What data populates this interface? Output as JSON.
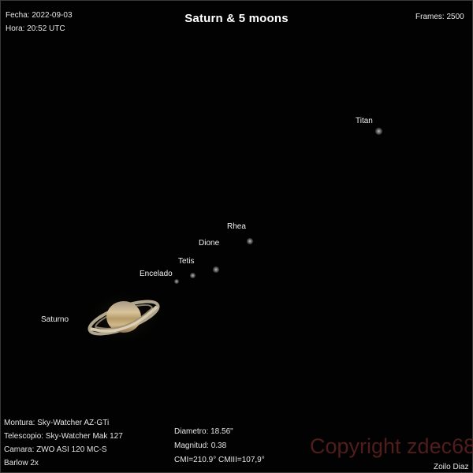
{
  "header": {
    "date": "Fecha: 2022-09-03",
    "time": "Hora: 20:52 UTC",
    "title": "Saturn & 5 moons",
    "frames": "Frames: 2500"
  },
  "objects": {
    "saturn_label": "Saturno",
    "moons": [
      {
        "name": "Titan"
      },
      {
        "name": "Rhea"
      },
      {
        "name": "Dione"
      },
      {
        "name": "Tetis"
      },
      {
        "name": "Encelado"
      }
    ]
  },
  "equipment": {
    "mount": "Montura: Sky-Watcher AZ-GTi",
    "telescope": "Telescopio: Sky-Watcher Mak 127",
    "camera": "Camara: ZWO ASI 120 MC-S",
    "barlow": "Barlow 2x"
  },
  "stats": {
    "diameter": "Diametro: 18.56\"",
    "magnitude": "Magnitud: 0.38",
    "cm": "CMI=210.9° CMIII=107,9°"
  },
  "watermark": "Copyright zdec68",
  "author": "Zoilo Diaz",
  "colors": {
    "background": "#000000",
    "text": "#e6e6e6",
    "watermark": "#5a1f1f",
    "saturn_body": "#c9b38a",
    "saturn_ring": "#d8ccb0"
  }
}
